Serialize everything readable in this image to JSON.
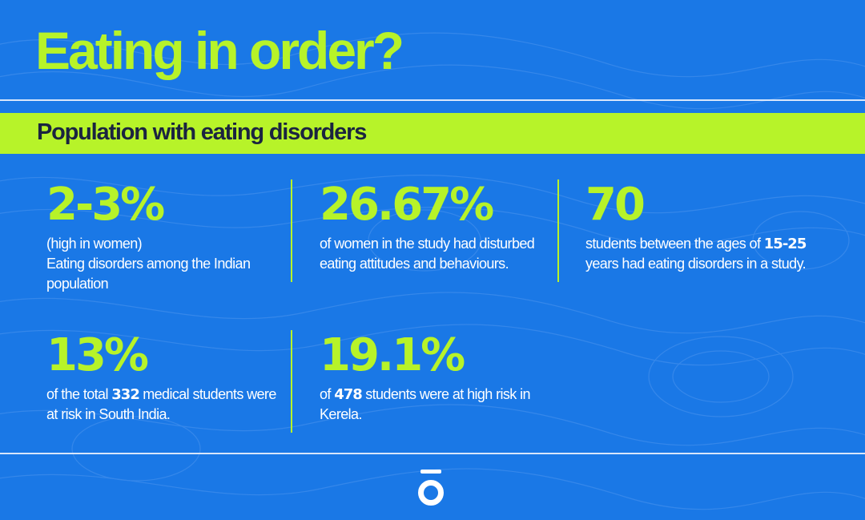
{
  "header": {
    "title": "Eating in order?"
  },
  "band": {
    "subtitle": "Population with eating disorders"
  },
  "stats": [
    {
      "value": "2-3%",
      "note": "(high in women)",
      "text": "Eating disorders among the Indian population"
    },
    {
      "value": "26.67%",
      "text": "of women in the study had disturbed eating attitudes and behaviours."
    },
    {
      "value": "70",
      "text_before": "students between the ages of",
      "highlight": "15-25",
      "text_after": "years had eating disorders in a study."
    },
    {
      "value": "13%",
      "text_before": "of the total",
      "highlight": "332",
      "text_after": "medical students were at risk in South India."
    },
    {
      "value": "19.1%",
      "text_before": "of",
      "highlight": "478",
      "text_after": "students were at high risk in Kerela."
    }
  ],
  "colors": {
    "background": "#1a78e6",
    "accent": "#b7f329",
    "band_text": "#1b2440",
    "text": "#ffffff"
  },
  "icons": {
    "logo": "ring-logo-icon"
  }
}
